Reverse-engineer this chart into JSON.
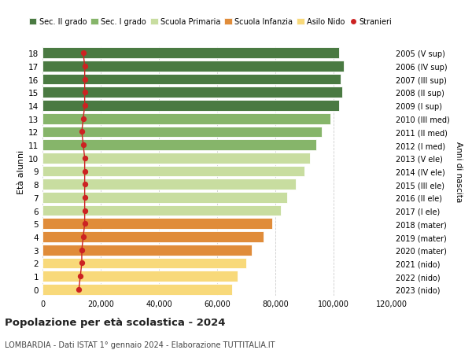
{
  "ages": [
    0,
    1,
    2,
    3,
    4,
    5,
    6,
    7,
    8,
    9,
    10,
    11,
    12,
    13,
    14,
    15,
    16,
    17,
    18
  ],
  "years": [
    "2023 (nido)",
    "2022 (nido)",
    "2021 (nido)",
    "2020 (mater)",
    "2019 (mater)",
    "2018 (mater)",
    "2017 (I ele)",
    "2016 (II ele)",
    "2015 (III ele)",
    "2014 (IV ele)",
    "2013 (V ele)",
    "2012 (I med)",
    "2011 (II med)",
    "2010 (III med)",
    "2009 (I sup)",
    "2008 (II sup)",
    "2007 (III sup)",
    "2006 (IV sup)",
    "2005 (V sup)"
  ],
  "bar_values": [
    65000,
    67000,
    70000,
    72000,
    76000,
    79000,
    82000,
    84000,
    87000,
    90000,
    92000,
    94000,
    96000,
    99000,
    102000,
    103000,
    102500,
    103500,
    102000
  ],
  "stranieri_values": [
    12500,
    13000,
    13500,
    13500,
    14000,
    14500,
    14500,
    14500,
    14500,
    14500,
    14500,
    14000,
    13500,
    14000,
    14500,
    14500,
    14500,
    14500,
    14000
  ],
  "bar_colors": [
    "#f8d97a",
    "#f8d97a",
    "#f8d97a",
    "#e08c3a",
    "#e08c3a",
    "#e08c3a",
    "#c8dda0",
    "#c8dda0",
    "#c8dda0",
    "#c8dda0",
    "#c8dda0",
    "#86b56a",
    "#86b56a",
    "#86b56a",
    "#4a7a42",
    "#4a7a42",
    "#4a7a42",
    "#4a7a42",
    "#4a7a42"
  ],
  "legend_labels": [
    "Sec. II grado",
    "Sec. I grado",
    "Scuola Primaria",
    "Scuola Infanzia",
    "Asilo Nido",
    "Stranieri"
  ],
  "legend_colors": [
    "#4a7a42",
    "#86b56a",
    "#c8dda0",
    "#e08c3a",
    "#f8d97a",
    "#cc2222"
  ],
  "ylabel_left": "Età alunni",
  "ylabel_right": "Anni di nascita",
  "title": "Popolazione per età scolastica - 2024",
  "subtitle": "LOMBARDIA - Dati ISTAT 1° gennaio 2024 - Elaborazione TUTTITALIA.IT",
  "xlim": [
    0,
    120000
  ],
  "xticks": [
    0,
    20000,
    40000,
    60000,
    80000,
    100000,
    120000
  ],
  "xtick_labels": [
    "0",
    "20,000",
    "40,000",
    "60,000",
    "80,000",
    "100,000",
    "120,000"
  ],
  "stranieri_color": "#cc2222",
  "bar_height": 0.82,
  "bg_color": "#ffffff",
  "grid_color": "#cccccc"
}
